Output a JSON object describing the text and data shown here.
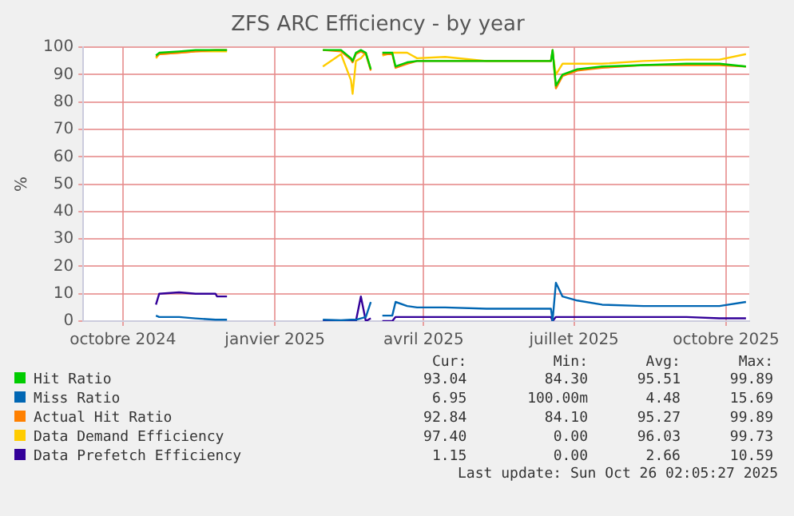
{
  "chart_data": {
    "type": "line",
    "title": "ZFS ARC Efficiency - by year",
    "ylabel": "%",
    "x": [
      "2024-10-21",
      "2024-10-23",
      "2024-11-04",
      "2024-11-14",
      "2024-11-26",
      "2024-11-27",
      "2024-12-03",
      "2024-12-29",
      "2025-01-30",
      "2025-02-10",
      "2025-02-16",
      "2025-02-17",
      "2025-02-19",
      "2025-02-22",
      "2025-02-25",
      "2025-02-28",
      "2025-03-04",
      "2025-03-07",
      "2025-03-13",
      "2025-03-15",
      "2025-03-22",
      "2025-03-28",
      "2025-04-14",
      "2025-05-09",
      "2025-06-17",
      "2025-06-18",
      "2025-06-20",
      "2025-06-24",
      "2025-07-03",
      "2025-07-18",
      "2025-08-12",
      "2025-09-07",
      "2025-09-27",
      "2025-10-13"
    ],
    "series": [
      {
        "name": "Hit Ratio",
        "color": "#00cc00",
        "values": [
          97,
          98,
          98.5,
          99,
          99,
          99,
          99,
          null,
          99,
          99,
          96,
          95,
          98,
          99,
          98,
          92,
          null,
          98,
          98,
          93,
          94.5,
          95,
          95,
          95,
          95,
          99,
          86,
          90,
          92,
          93,
          93.5,
          94,
          94,
          93
        ]
      },
      {
        "name": "Miss Ratio",
        "color": "#0066b3",
        "values": [
          2,
          1.5,
          1.5,
          1,
          0.5,
          0.5,
          0.5,
          null,
          0.5,
          0.3,
          0.5,
          0.5,
          0.5,
          1,
          1.5,
          7,
          null,
          2,
          2,
          7,
          5.5,
          5,
          5,
          4.5,
          4.5,
          0.2,
          14,
          9,
          7.5,
          6,
          5.5,
          5.5,
          5.5,
          7
        ]
      },
      {
        "name": "Actual Hit Ratio",
        "color": "#ff8000",
        "values": [
          96.5,
          97.5,
          98,
          98.5,
          99,
          99,
          99,
          null,
          99,
          98.5,
          95.5,
          94.5,
          97.5,
          98.5,
          97.5,
          91.5,
          null,
          97.5,
          97.5,
          92.5,
          94,
          95,
          95,
          95,
          95,
          99,
          85,
          89.5,
          91.5,
          92.5,
          93.5,
          93.5,
          93.5,
          93
        ]
      },
      {
        "name": "Data Demand Efficiency",
        "color": "#ffcc00",
        "values": [
          96,
          97.5,
          98,
          98.5,
          98.5,
          98.5,
          98.5,
          null,
          93,
          97.5,
          88,
          83,
          95,
          96,
          98,
          92,
          null,
          97,
          98,
          98,
          98,
          96,
          96.5,
          95,
          95,
          98,
          90,
          94,
          94,
          94,
          95,
          95.5,
          95.5,
          97.5
        ]
      },
      {
        "name": "Data Prefetch Efficiency",
        "color": "#330099",
        "values": [
          6,
          10,
          10.5,
          10,
          10,
          9,
          9,
          null,
          0,
          0,
          0,
          0,
          0,
          9,
          0,
          1,
          null,
          0,
          0,
          1.5,
          1.5,
          1.5,
          1.5,
          1.5,
          1.5,
          0,
          1.5,
          1.5,
          1.5,
          1.5,
          1.5,
          1.5,
          1,
          1
        ]
      }
    ],
    "xlim": [
      "2024-09-07",
      "2025-10-15"
    ],
    "xticks": [
      {
        "value": "2024-10-01",
        "label": "octobre 2024"
      },
      {
        "value": "2025-01-01",
        "label": "janvier 2025"
      },
      {
        "value": "2025-04-01",
        "label": "avril 2025"
      },
      {
        "value": "2025-07-01",
        "label": "juillet 2025"
      },
      {
        "value": "2025-10-01",
        "label": "octobre 2025"
      }
    ],
    "ylim": [
      0,
      100
    ],
    "yticks": [
      0,
      10,
      20,
      30,
      40,
      50,
      60,
      70,
      80,
      90,
      100
    ],
    "grid": true,
    "legend": "bottom",
    "marker": "none",
    "line_style": "solid",
    "annotations": [
      "Cur:",
      "Min:",
      "Avg:",
      "Max:",
      "93.04",
      "84.30",
      "95.51",
      "99.89",
      "6.95",
      "100.00m",
      "4.48",
      "15.69",
      "92.84",
      "84.10",
      "95.27",
      "99.89",
      "97.40",
      "0.00",
      "96.03",
      "99.73",
      "1.15",
      "0.00",
      "2.66",
      "10.59",
      "Last update: Sun Oct 26 02:05:27 2025"
    ]
  }
}
